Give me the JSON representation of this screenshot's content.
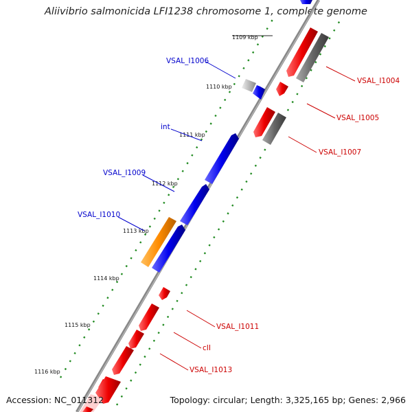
{
  "title": "Aliivibrio salmonicida LFI1238 chromosome 1, complete genome",
  "footer": {
    "accession": "Accession: NC_011312",
    "summary": "Topology: circular; Length: 3,325,165 bp; Genes: 2,966"
  },
  "colors": {
    "forward_gene": "#0000ee",
    "reverse_gene": "#ee0000",
    "other_gene": "#666666",
    "highlight_gene": "#ff8c00",
    "light_gene": "#bbbbbb",
    "backbone": "#888888",
    "gc_dots": "#228b22",
    "label_forward": "#0000cc",
    "label_reverse": "#cc0000"
  },
  "ticks": [
    {
      "label": "1109 kbp"
    },
    {
      "label": "1110 kbp"
    },
    {
      "label": "1111 kbp"
    },
    {
      "label": "1112 kbp"
    },
    {
      "label": "1113 kbp"
    },
    {
      "label": "1114 kbp"
    },
    {
      "label": "1115 kbp"
    },
    {
      "label": "1116 kbp"
    }
  ],
  "gene_labels": [
    {
      "name": "VSAL_I1006",
      "strand": "forward"
    },
    {
      "name": "int",
      "strand": "forward"
    },
    {
      "name": "VSAL_I1009",
      "strand": "forward"
    },
    {
      "name": "VSAL_I1010",
      "strand": "forward"
    },
    {
      "name": "VSAL_I1004",
      "strand": "reverse"
    },
    {
      "name": "VSAL_I1005",
      "strand": "reverse"
    },
    {
      "name": "VSAL_I1007",
      "strand": "reverse"
    },
    {
      "name": "VSAL_I1011",
      "strand": "reverse"
    },
    {
      "name": "cII",
      "strand": "reverse"
    },
    {
      "name": "VSAL_I1013",
      "strand": "reverse"
    }
  ]
}
